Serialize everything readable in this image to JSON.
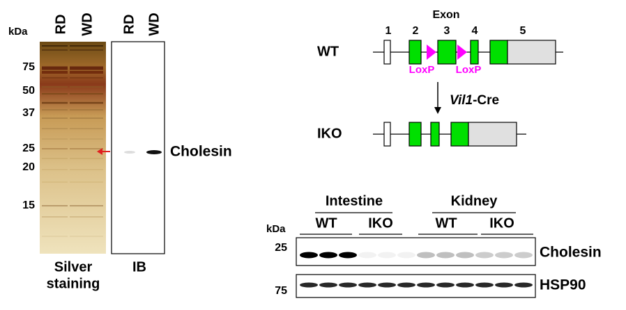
{
  "panel_a": {
    "kda": "kDa",
    "lanes_silver": [
      "RD",
      "WD"
    ],
    "lanes_ib": [
      "RD",
      "WD"
    ],
    "markers": [
      75,
      50,
      37,
      25,
      20,
      15
    ],
    "band_label": "Cholesin",
    "caption_silver": [
      "Silver",
      "staining"
    ],
    "caption_ib": "IB"
  },
  "panel_b": {
    "exon_title": "Exon",
    "exon_numbers": [
      "1",
      "2",
      "3",
      "4",
      "5"
    ],
    "wt": "WT",
    "loxp": [
      "LoxP",
      "LoxP"
    ],
    "cre": {
      "gene": "Vil1",
      "suffix": "-Cre"
    },
    "iko": "IKO"
  },
  "panel_c": {
    "tissues": [
      "Intestine",
      "Kidney"
    ],
    "kda": "kDa",
    "genotypes": [
      "WT",
      "IKO",
      "WT",
      "IKO"
    ],
    "markers": [
      25,
      75
    ],
    "proteins": [
      "Cholesin",
      "HSP90"
    ]
  }
}
